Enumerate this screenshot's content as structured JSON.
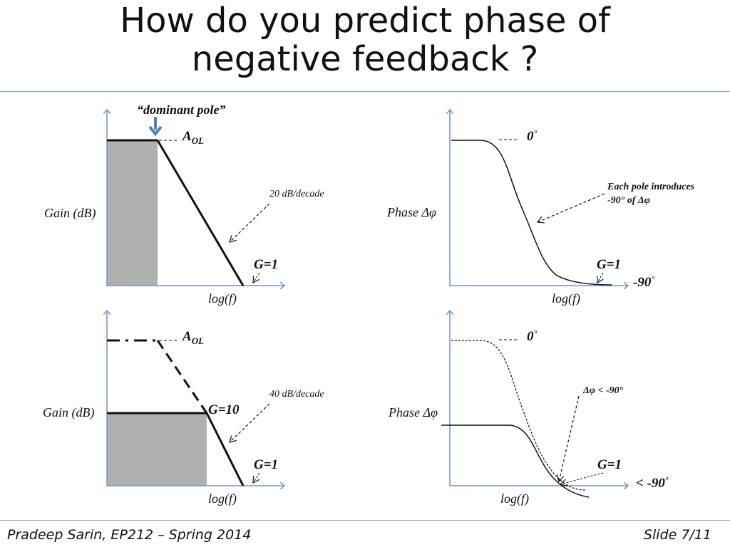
{
  "title": {
    "line1": "How do you predict phase of",
    "line2": "negative feedback ?"
  },
  "footer": {
    "left": "Pradeep Sarin, EP212 – Spring 2014",
    "right": "Slide 7/11"
  },
  "panels": {
    "top_left": {
      "dominant_pole": "“dominant pole”",
      "aol_main": "A",
      "aol_sub": "OL",
      "slope": "20 dB/decade",
      "ylabel": "Gain (dB)",
      "g1": "G=1",
      "xlabel": "log(f)"
    },
    "top_right": {
      "zero": "0",
      "deg": "°",
      "note_line1": "Each pole introduces",
      "note_line2": "-90° of  Δφ",
      "ylabel": "Phase Δφ",
      "g1": "G=1",
      "minus90": "-90",
      "xlabel": "log(f)"
    },
    "bottom_left": {
      "aol_main": "A",
      "aol_sub": "OL",
      "slope": "40 dB/decade",
      "ylabel": "Gain (dB)",
      "g10": "G=10",
      "g1": "G=1",
      "xlabel": "log(f)"
    },
    "bottom_right": {
      "zero": "0",
      "deg": "°",
      "note": "Δφ < -90°",
      "ylabel": "Phase Δφ",
      "g1": "G=1",
      "lt90": "< -90",
      "xlabel": "log(f)"
    }
  },
  "colors": {
    "axis": "#6f96c8",
    "shade": "#b0b0b0",
    "rule": "#8aa8c8"
  }
}
